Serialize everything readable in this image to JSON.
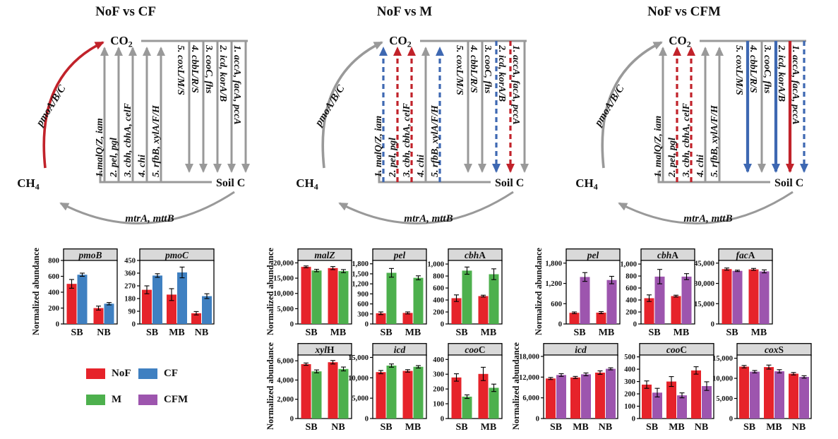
{
  "colors": {
    "NoF": "#e6232a",
    "CF": "#3f80c1",
    "M": "#4db04d",
    "CFM": "#9d55ae",
    "arrow_gray": "#999999",
    "arrow_red": "#c1222a",
    "arrow_blue": "#3e68b2",
    "axis_black": "#000000",
    "header_bg": "#d9d9d9"
  },
  "legend": {
    "items": [
      {
        "label": "NoF",
        "key": "NoF"
      },
      {
        "label": "CF",
        "key": "CF"
      },
      {
        "label": "M",
        "key": "M"
      },
      {
        "label": "CFM",
        "key": "CFM"
      }
    ]
  },
  "ylabel": "Normalized abundance",
  "panels": [
    {
      "title": "NoF vs CF",
      "co2_main": "CO",
      "co2_sub": "2",
      "ch4_main": "CH",
      "ch4_sub": "4",
      "soil_label": "Soil C",
      "methane_oxidation_label": "pmoA/B/C",
      "methanogenesis_label": "mtrA, mttB",
      "pmo_arrow": {
        "color": "red",
        "dashed": false
      },
      "up_arrows": [
        {
          "label": "1.malQ/Z, iam",
          "color": "gray",
          "dashed": false
        },
        {
          "label": "2. pel, pgl",
          "color": "gray",
          "dashed": false
        },
        {
          "label": "3. cbh, cbhA, celF",
          "color": "gray",
          "dashed": false
        },
        {
          "label": "4. chi",
          "color": "gray",
          "dashed": false
        },
        {
          "label": "5. rfbB, xylA/F/H",
          "color": "gray",
          "dashed": false
        }
      ],
      "down_arrows": [
        {
          "label": "1. accA, facA, pccA",
          "color": "gray",
          "dashed": false
        },
        {
          "label": "2. icd, korA/B",
          "color": "gray",
          "dashed": false
        },
        {
          "label": "3. cooC, fhs",
          "color": "gray",
          "dashed": false
        },
        {
          "label": "4. cbbL/R/S",
          "color": "gray",
          "dashed": false
        },
        {
          "label": "5. coxL/M/S",
          "color": "gray",
          "dashed": false
        }
      ]
    },
    {
      "title": "NoF vs M",
      "co2_main": "CO",
      "co2_sub": "2",
      "ch4_main": "CH",
      "ch4_sub": "4",
      "soil_label": "Soil C",
      "methane_oxidation_label": "pmoA/B/C",
      "methanogenesis_label": "mtrA, mttB",
      "pmo_arrow": {
        "color": "gray",
        "dashed": false
      },
      "up_arrows": [
        {
          "label": "1. malQ/Z, iam",
          "color": "blue",
          "dashed": true
        },
        {
          "label": "2. pel, pgl",
          "color": "red",
          "dashed": true
        },
        {
          "label": "3. cbh, cbhA, celF",
          "color": "red",
          "dashed": true
        },
        {
          "label": "4. chi",
          "color": "gray",
          "dashed": false
        },
        {
          "label": "5. rfbB, xylA/F/H",
          "color": "blue",
          "dashed": true
        }
      ],
      "down_arrows": [
        {
          "label": "1. accA, facA, pccA",
          "color": "gray",
          "dashed": false
        },
        {
          "label": "2. icd, korA/B",
          "color": "red",
          "dashed": true
        },
        {
          "label": "3. cooC, fhs",
          "color": "blue",
          "dashed": true
        },
        {
          "label": "4. cbbL/R/S",
          "color": "gray",
          "dashed": false
        },
        {
          "label": "5. coxL/M/S",
          "color": "gray",
          "dashed": false
        }
      ]
    },
    {
      "title": "NoF vs CFM",
      "co2_main": "CO",
      "co2_sub": "2",
      "ch4_main": "CH",
      "ch4_sub": "4",
      "soil_label": "Soil C",
      "methane_oxidation_label": "pmoA/B/C",
      "methanogenesis_label": "mtrA, mttB",
      "pmo_arrow": {
        "color": "gray",
        "dashed": false
      },
      "up_arrows": [
        {
          "label": "1. malQ/Z, iam",
          "color": "gray",
          "dashed": false
        },
        {
          "label": "2. pel, pgl",
          "color": "red",
          "dashed": true
        },
        {
          "label": "3. cbh, cbhA, celF",
          "color": "red",
          "dashed": true
        },
        {
          "label": "4. chi",
          "color": "gray",
          "dashed": false
        },
        {
          "label": "5. rfbB, xylA/F/H",
          "color": "gray",
          "dashed": false
        }
      ],
      "down_arrows": [
        {
          "label": "1. accA, facA, pccA",
          "color": "blue",
          "dashed": true
        },
        {
          "label": "2. icd, korA/B",
          "color": "red",
          "dashed": false
        },
        {
          "label": "3. cooC, fhs",
          "color": "blue",
          "dashed": false
        },
        {
          "label": "4. cbbL/R/S",
          "color": "gray",
          "dashed": false
        },
        {
          "label": "5. coxL/M/S",
          "color": "blue",
          "dashed": false
        }
      ]
    }
  ],
  "chart_data": [
    {
      "id": "pmoB-left",
      "type": "bar",
      "title_italic": "pmoB",
      "title_roman": "",
      "categories": [
        "SB",
        "NB"
      ],
      "yticks": [
        0,
        200,
        400,
        600,
        800
      ],
      "ytick_labels": [
        "0",
        "200",
        "400",
        "600",
        "800"
      ],
      "ylim": 800,
      "series": [
        {
          "name": "NoF",
          "values": [
            505,
            200
          ],
          "errors": [
            55,
            25
          ]
        },
        {
          "name": "CF",
          "values": [
            620,
            255
          ],
          "errors": [
            20,
            15
          ]
        }
      ]
    },
    {
      "id": "pmoC-left",
      "type": "bar",
      "title_italic": "pmoC",
      "title_roman": "",
      "categories": [
        "SB",
        "MB",
        "NB"
      ],
      "yticks": [
        0,
        90,
        180,
        270,
        360,
        450
      ],
      "ytick_labels": [
        "0",
        "90",
        "180",
        "270",
        "360",
        "450"
      ],
      "ylim": 450,
      "series": [
        {
          "name": "NoF",
          "values": [
            242,
            208,
            76
          ],
          "errors": [
            28,
            42,
            12
          ]
        },
        {
          "name": "CF",
          "values": [
            343,
            365,
            197
          ],
          "errors": [
            13,
            38,
            17
          ]
        }
      ]
    },
    {
      "id": "malZ-mid",
      "type": "bar",
      "title_italic": "malZ",
      "title_roman": "",
      "categories": [
        "SB",
        "MB"
      ],
      "yticks": [
        0,
        5000,
        10000,
        15000,
        20000
      ],
      "ytick_labels": [
        "0",
        "5,000",
        "10,000",
        "15,000",
        "20,000"
      ],
      "ylim": 20800,
      "series": [
        {
          "name": "NoF",
          "values": [
            18700,
            18300
          ],
          "errors": [
            300,
            500
          ]
        },
        {
          "name": "M",
          "values": [
            17500,
            17300
          ],
          "errors": [
            400,
            500
          ]
        }
      ]
    },
    {
      "id": "pel-mid",
      "type": "bar",
      "title_italic": "pel",
      "title_roman": "",
      "categories": [
        "SB",
        "MB"
      ],
      "yticks": [
        0,
        300,
        600,
        900,
        1200,
        1500,
        1800
      ],
      "ytick_labels": [
        "0",
        "300",
        "600",
        "900",
        "1,200",
        "1,500",
        "1,800"
      ],
      "ylim": 1900,
      "series": [
        {
          "name": "NoF",
          "values": [
            320,
            330
          ],
          "errors": [
            40,
            30
          ]
        },
        {
          "name": "M",
          "values": [
            1530,
            1380
          ],
          "errors": [
            130,
            60
          ]
        }
      ]
    },
    {
      "id": "cbhA-mid",
      "type": "bar",
      "title_italic": "cbh",
      "title_roman": "A",
      "categories": [
        "SB",
        "MB"
      ],
      "yticks": [
        0,
        200,
        400,
        600,
        800,
        1000
      ],
      "ytick_labels": [
        "0",
        "200",
        "400",
        "600",
        "800",
        "1,000"
      ],
      "ylim": 1060,
      "series": [
        {
          "name": "NoF",
          "values": [
            430,
            465
          ],
          "errors": [
            55,
            15
          ]
        },
        {
          "name": "M",
          "values": [
            890,
            830
          ],
          "errors": [
            60,
            90
          ]
        }
      ]
    },
    {
      "id": "xylH-mid",
      "type": "bar",
      "title_italic": "xyl",
      "title_roman": "H",
      "categories": [
        "SB",
        "NB"
      ],
      "yticks": [
        0,
        2000,
        4000,
        6000
      ],
      "ytick_labels": [
        "0",
        "2,000",
        "4,000",
        "6,000"
      ],
      "ylim": 6600,
      "series": [
        {
          "name": "NoF",
          "values": [
            5650,
            5850
          ],
          "errors": [
            120,
            180
          ]
        },
        {
          "name": "M",
          "values": [
            4900,
            5150
          ],
          "errors": [
            150,
            200
          ]
        }
      ]
    },
    {
      "id": "icd-mid",
      "type": "bar",
      "title_italic": "icd",
      "title_roman": "",
      "categories": [
        "SB",
        "MB"
      ],
      "yticks": [
        0,
        5000,
        10000,
        15000
      ],
      "ytick_labels": [
        "0",
        "5,000",
        "10,000",
        "15,000"
      ],
      "ylim": 15600,
      "series": [
        {
          "name": "NoF",
          "values": [
            11400,
            11700
          ],
          "errors": [
            400,
            300
          ]
        },
        {
          "name": "M",
          "values": [
            13000,
            12700
          ],
          "errors": [
            400,
            300
          ]
        }
      ]
    },
    {
      "id": "cooC-mid",
      "type": "bar",
      "title_italic": "coo",
      "title_roman": "C",
      "categories": [
        "SB",
        "MB"
      ],
      "yticks": [
        0,
        100,
        200,
        300,
        400
      ],
      "ytick_labels": [
        "0",
        "100",
        "200",
        "300",
        "400"
      ],
      "ylim": 430,
      "series": [
        {
          "name": "NoF",
          "values": [
            278,
            302
          ],
          "errors": [
            25,
            45
          ]
        },
        {
          "name": "M",
          "values": [
            148,
            208
          ],
          "errors": [
            12,
            25
          ]
        }
      ]
    },
    {
      "id": "pel-right",
      "type": "bar",
      "title_italic": "pel",
      "title_roman": "",
      "categories": [
        "SB",
        "MB"
      ],
      "yticks": [
        0,
        600,
        1200,
        1800
      ],
      "ytick_labels": [
        "0",
        "600",
        "1,200",
        "1,800"
      ],
      "ylim": 1880,
      "series": [
        {
          "name": "NoF",
          "values": [
            330,
            335
          ],
          "errors": [
            25,
            30
          ]
        },
        {
          "name": "CFM",
          "values": [
            1390,
            1300
          ],
          "errors": [
            130,
            110
          ]
        }
      ]
    },
    {
      "id": "cbhA-right",
      "type": "bar",
      "title_italic": "cbh",
      "title_roman": "A",
      "categories": [
        "SB",
        "MB"
      ],
      "yticks": [
        0,
        200,
        400,
        600,
        800,
        1000
      ],
      "ytick_labels": [
        "0",
        "200",
        "400",
        "600",
        "800",
        "1,000"
      ],
      "ylim": 1060,
      "series": [
        {
          "name": "NoF",
          "values": [
            430,
            465
          ],
          "errors": [
            55,
            15
          ]
        },
        {
          "name": "CFM",
          "values": [
            790,
            790
          ],
          "errors": [
            120,
            50
          ]
        }
      ]
    },
    {
      "id": "facA-right",
      "type": "bar",
      "title_italic": "fac",
      "title_roman": "A",
      "categories": [
        "SB",
        "MB"
      ],
      "yticks": [
        0,
        15000,
        30000,
        45000
      ],
      "ytick_labels": [
        "0",
        "15,000",
        "30,000",
        "45,000"
      ],
      "ylim": 47000,
      "series": [
        {
          "name": "NoF",
          "values": [
            40600,
            40400
          ],
          "errors": [
            800,
            700
          ]
        },
        {
          "name": "CFM",
          "values": [
            39300,
            38900
          ],
          "errors": [
            500,
            1100
          ]
        }
      ]
    },
    {
      "id": "icd-right",
      "type": "bar",
      "title_italic": "icd",
      "title_roman": "",
      "categories": [
        "SB",
        "MB",
        "NB"
      ],
      "yticks": [
        0,
        6000,
        12000,
        18000
      ],
      "ytick_labels": [
        "0",
        "6,000",
        "12,000",
        "18,000"
      ],
      "ylim": 18400,
      "series": [
        {
          "name": "NoF",
          "values": [
            11600,
            11900,
            13300
          ],
          "errors": [
            300,
            300,
            500
          ]
        },
        {
          "name": "CFM",
          "values": [
            12600,
            12800,
            14400
          ],
          "errors": [
            400,
            400,
            300
          ]
        }
      ]
    },
    {
      "id": "cooC-right",
      "type": "bar",
      "title_italic": "coo",
      "title_roman": "C",
      "categories": [
        "SB",
        "MB",
        "NB"
      ],
      "yticks": [
        0,
        100,
        200,
        300,
        400,
        500
      ],
      "ytick_labels": [
        "0",
        "100",
        "200",
        "300",
        "400",
        "500"
      ],
      "ylim": 515,
      "series": [
        {
          "name": "NoF",
          "values": [
            275,
            300,
            390
          ],
          "errors": [
            30,
            40,
            30
          ]
        },
        {
          "name": "CFM",
          "values": [
            210,
            188,
            263
          ],
          "errors": [
            35,
            20,
            35
          ]
        }
      ]
    },
    {
      "id": "coxS-right",
      "type": "bar",
      "title_italic": "cox",
      "title_roman": "S",
      "categories": [
        "SB",
        "MB",
        "NB"
      ],
      "yticks": [
        0,
        5000,
        10000,
        15000
      ],
      "ytick_labels": [
        "0",
        "5,000",
        "10,000",
        "15,000"
      ],
      "ylim": 15800,
      "series": [
        {
          "name": "NoF",
          "values": [
            12900,
            12800,
            11150
          ],
          "errors": [
            300,
            500,
            300
          ]
        },
        {
          "name": "CFM",
          "values": [
            11650,
            11750,
            10350
          ],
          "errors": [
            300,
            400,
            300
          ]
        }
      ]
    }
  ]
}
